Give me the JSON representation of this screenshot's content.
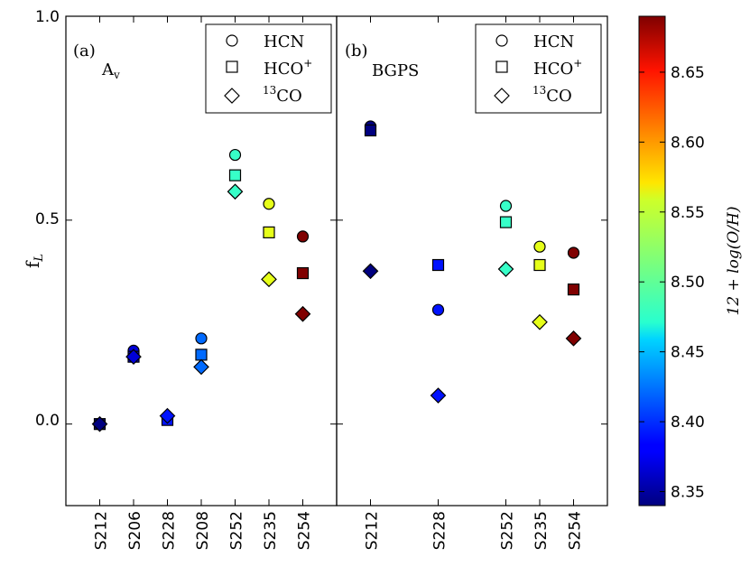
{
  "chart_data": {
    "type": "scatter",
    "ylabel": "f",
    "ylabel_sub": "L",
    "ylim": [
      -0.2,
      1.0
    ],
    "yticks": [
      "1.0",
      "0.5",
      "0.0"
    ],
    "colorbar": {
      "label": "12 + log(O/H)",
      "range": [
        8.34,
        8.69
      ],
      "ticks": [
        "8.35",
        "8.40",
        "8.45",
        "8.50",
        "8.55",
        "8.60",
        "8.65"
      ]
    },
    "legend": {
      "placement": "top-right",
      "entries": [
        {
          "label": "HCN",
          "marker": "circle"
        },
        {
          "label": "HCO",
          "sup": "+",
          "marker": "square"
        },
        {
          "label": "CO",
          "pre_sup": "13",
          "marker": "diamond"
        }
      ]
    },
    "panels": [
      {
        "label": "(a)",
        "tracer": "A",
        "tracer_sub": "v",
        "categories": [
          "S212",
          "S206",
          "S228",
          "S208",
          "S252",
          "S235",
          "S254"
        ],
        "oh": [
          8.34,
          8.37,
          8.39,
          8.42,
          8.49,
          8.55,
          8.69
        ],
        "series": [
          {
            "name": "HCN",
            "values": [
              0.0,
              0.18,
              0.015,
              0.21,
              0.66,
              0.54,
              0.46
            ]
          },
          {
            "name": "HCO+",
            "values": [
              0.0,
              0.165,
              0.01,
              0.17,
              0.61,
              0.47,
              0.37
            ]
          },
          {
            "name": "13CO",
            "values": [
              0.0,
              0.165,
              0.02,
              0.14,
              0.57,
              0.355,
              0.27
            ]
          }
        ]
      },
      {
        "label": "(b)",
        "tracer": "BGPS",
        "categories": [
          "S212",
          "",
          "S228",
          "",
          "S252",
          "S235",
          "S254"
        ],
        "oh": [
          8.34,
          null,
          8.39,
          null,
          8.49,
          8.55,
          8.69
        ],
        "series": [
          {
            "name": "HCN",
            "values": [
              0.73,
              null,
              0.28,
              null,
              0.535,
              0.435,
              0.42
            ]
          },
          {
            "name": "HCO+",
            "values": [
              0.72,
              null,
              0.39,
              null,
              0.495,
              0.39,
              0.33
            ]
          },
          {
            "name": "13CO",
            "values": [
              0.375,
              null,
              0.07,
              null,
              0.38,
              0.25,
              0.21
            ]
          }
        ]
      }
    ]
  }
}
